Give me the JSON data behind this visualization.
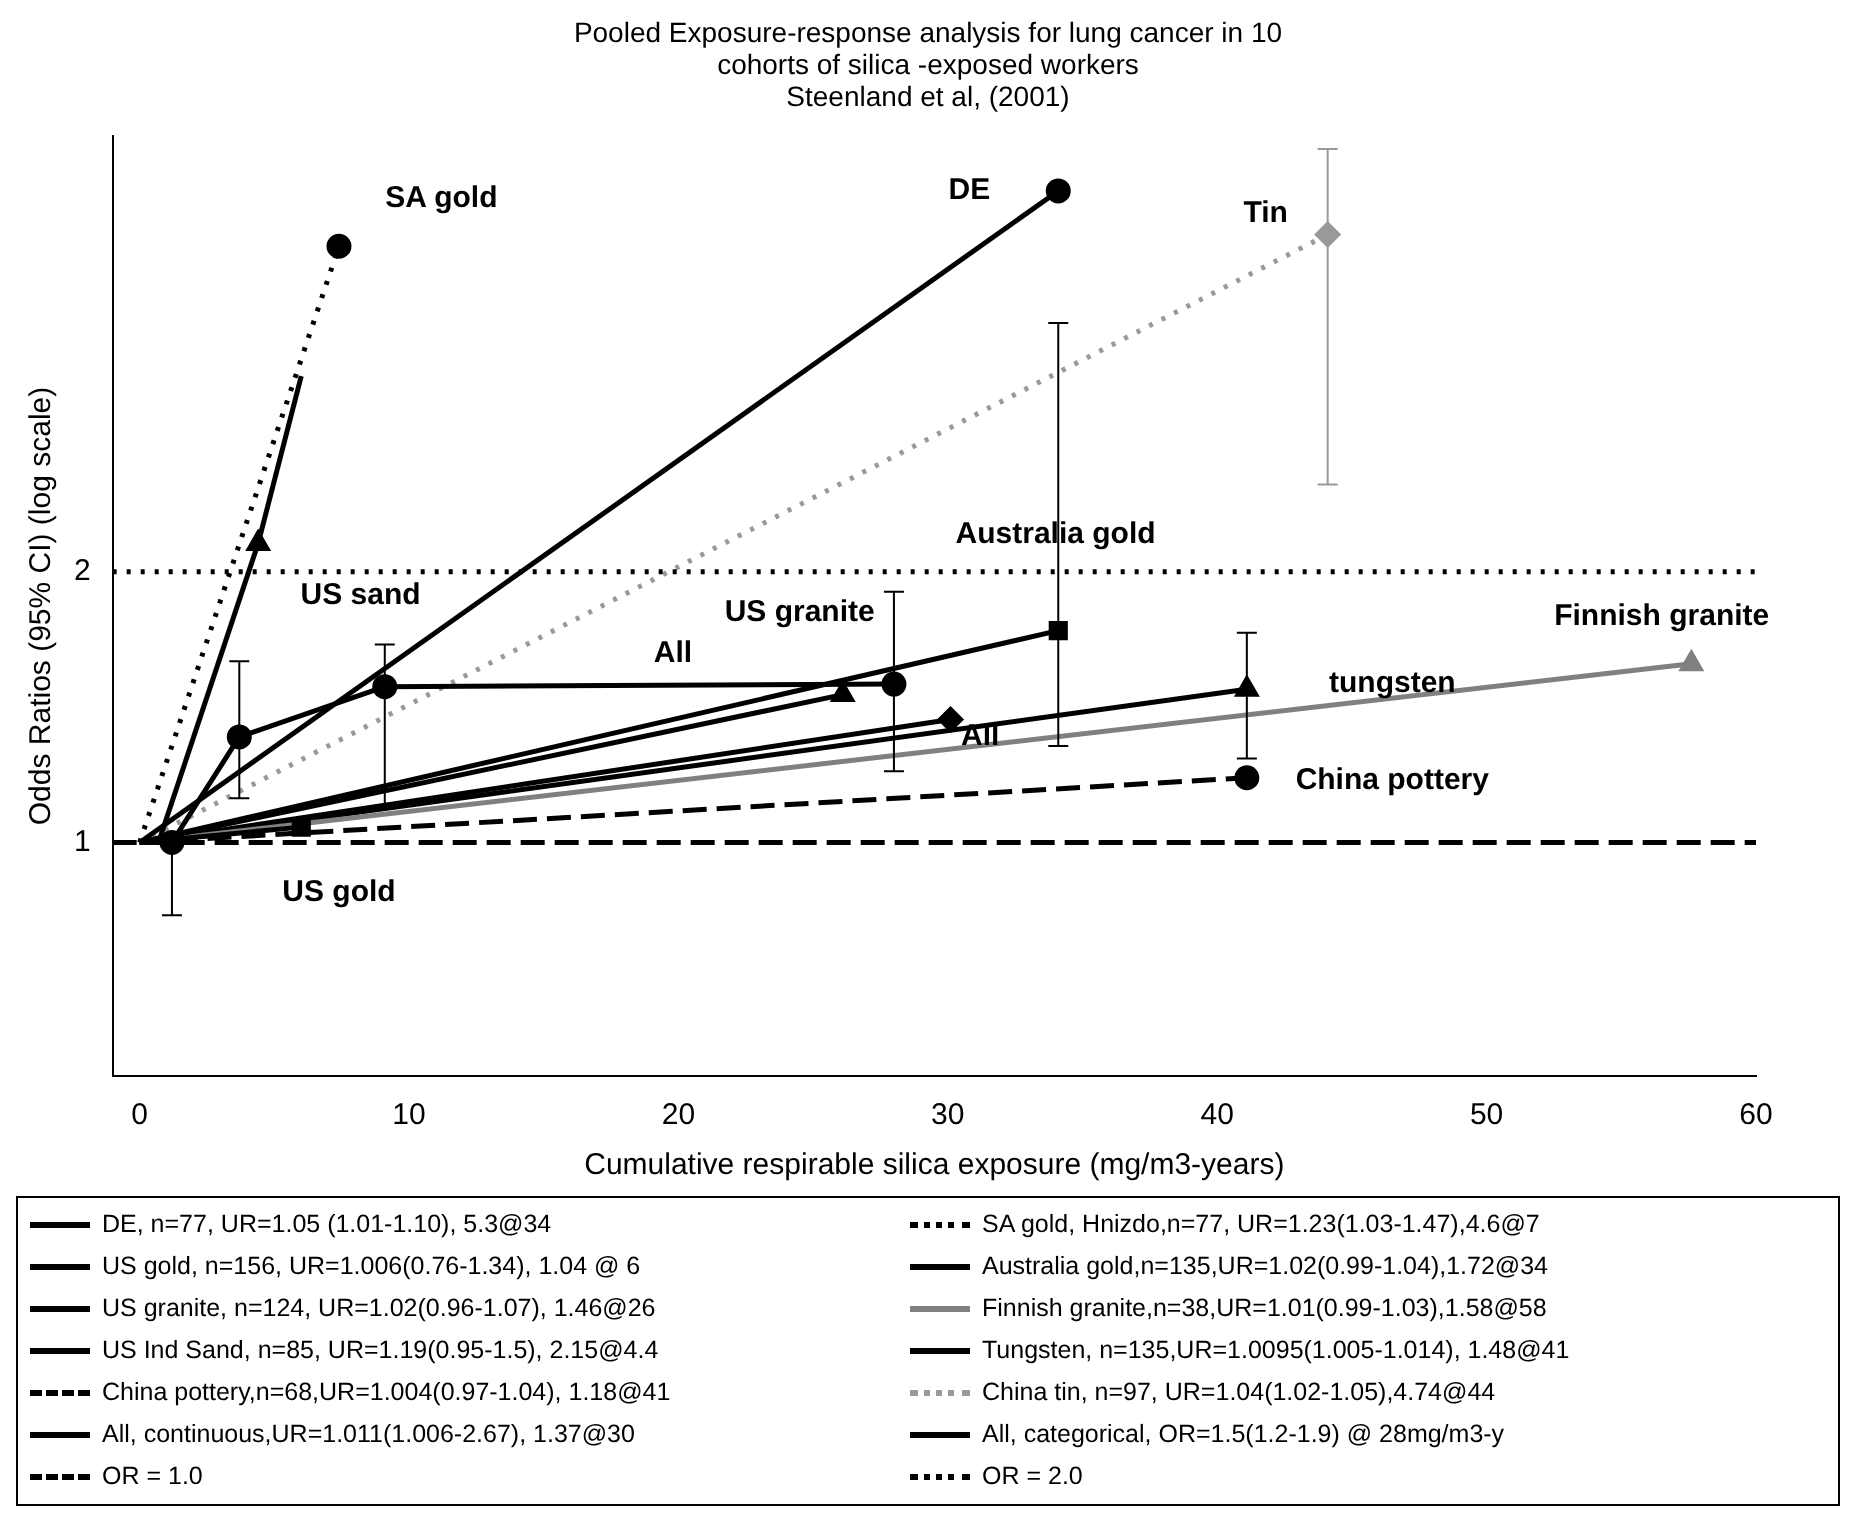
{
  "chart_data": {
    "type": "line",
    "title": "Pooled Exposure-response analysis for lung cancer in 10 cohorts of silica -exposed workers",
    "subtitle": "Steenland et al, (2001)",
    "xlabel": "Cumulative respirable silica exposure (mg/m3-years)",
    "ylabel": "Odds Ratios (95% CI) (log scale)",
    "log": "y",
    "xlim": [
      -1,
      60
    ],
    "xticks": [
      0,
      10,
      20,
      30,
      40,
      50,
      60
    ],
    "ylim": [
      0.55,
      6.1
    ],
    "yticks": [
      1,
      2
    ],
    "legend": "bottom",
    "series": [
      {
        "name": "DE, n=77, UR=1.05 (1.01-1.10), 5.3@34",
        "color": "#000000",
        "marker": "circle",
        "x": [
          0,
          34.1
        ],
        "values": [
          1,
          5.3
        ]
      },
      {
        "name": "SA gold, Hnizdo,n=77, UR=1.23(1.03-1.47),4.6@7",
        "color": "#000000",
        "marker": "circle",
        "line_style": "dotted",
        "x": [
          0,
          7.4
        ],
        "values": [
          1,
          4.6
        ]
      },
      {
        "name": "US gold, n=156, UR=1.006(0.76-1.34), 1.04 @ 6",
        "color": "#000000",
        "marker": "square",
        "x": [
          0,
          6
        ],
        "values": [
          1,
          1.04
        ]
      },
      {
        "name": "Australia gold,n=135,UR=1.02(0.99-1.04),1.72@34",
        "color": "#000000",
        "marker": "square",
        "x": [
          0,
          34.1
        ],
        "values": [
          1,
          1.72
        ],
        "errors": [
          null,
          [
            1.28,
            3.78
          ]
        ]
      },
      {
        "name": "US granite, n=124, UR=1.02(0.96-1.07), 1.46@26",
        "color": "#000000",
        "marker": "triangle",
        "x": [
          0,
          26.1
        ],
        "values": [
          1,
          1.46
        ]
      },
      {
        "name": "Finnish granite,n=38,UR=1.01(0.99-1.03),1.58@58",
        "color": "#808080",
        "marker": "triangle",
        "x": [
          0,
          57.6
        ],
        "values": [
          1,
          1.58
        ]
      },
      {
        "name": "US Ind Sand, n=85, UR=1.19(0.95-1.5), 2.15@4.4",
        "color": "#000000",
        "marker": "triangle",
        "x": [
          0.7,
          4.4
        ],
        "values": [
          1,
          2.15
        ]
      },
      {
        "name": "Tungsten, n=135,UR=1.0095(1.005-1.014), 1.48@41",
        "color": "#000000",
        "marker": "triangle",
        "x": [
          0,
          41.1
        ],
        "values": [
          1,
          1.48
        ],
        "errors": [
          null,
          [
            1.24,
            1.71
          ]
        ]
      },
      {
        "name": "China pottery,n=68,UR=1.004(0.97-1.04), 1.18@41",
        "color": "#000000",
        "marker": "circle",
        "line_style": "dashed",
        "x": [
          0,
          41.1
        ],
        "values": [
          1,
          1.18
        ]
      },
      {
        "name": "China tin, n=97, UR=1.04(1.02-1.05),4.74@44",
        "color": "#999999",
        "marker": "diamond",
        "line_style": "dotted",
        "x": [
          0,
          44.1
        ],
        "values": [
          1,
          4.74
        ],
        "errors": [
          null,
          [
            2.5,
            5.9
          ]
        ]
      },
      {
        "name": "All, continuous,UR=1.011(1.006-2.67), 1.37@30",
        "color": "#000000",
        "marker": "diamond",
        "x": [
          0,
          30.1
        ],
        "values": [
          1,
          1.37
        ]
      },
      {
        "name": "All, categorical, OR=1.5(1.2-1.9) @ 28mg/m3-y",
        "color": "#000000",
        "marker": "circle",
        "x": [
          0,
          1.2,
          3.7,
          9.1,
          28
        ],
        "values": [
          1,
          1,
          1.31,
          1.49,
          1.5
        ],
        "errors": [
          null,
          [
            0.83,
            1
          ],
          [
            1.12,
            1.59
          ],
          [
            1.1,
            1.66
          ],
          [
            1.2,
            1.9
          ]
        ]
      },
      {
        "color": "#000000",
        "marker": "none",
        "x": [
          4.4,
          6
        ],
        "values": [
          2.15,
          3.3
        ]
      }
    ],
    "ref_lines": [
      {
        "axis": "y",
        "value": 1,
        "label": "OR = 1.0",
        "color": "#000000",
        "line_style": "dashed"
      },
      {
        "axis": "y",
        "value": 2,
        "label": "OR = 2.0",
        "color": "#000000",
        "line_style": "dotted"
      }
    ],
    "annotations": [
      "SA gold",
      "DE",
      "Tin",
      "US sand",
      "US granite",
      "All",
      "All",
      "Australia gold",
      "Finnish granite",
      "tungsten",
      "China pottery",
      "US gold"
    ]
  }
}
